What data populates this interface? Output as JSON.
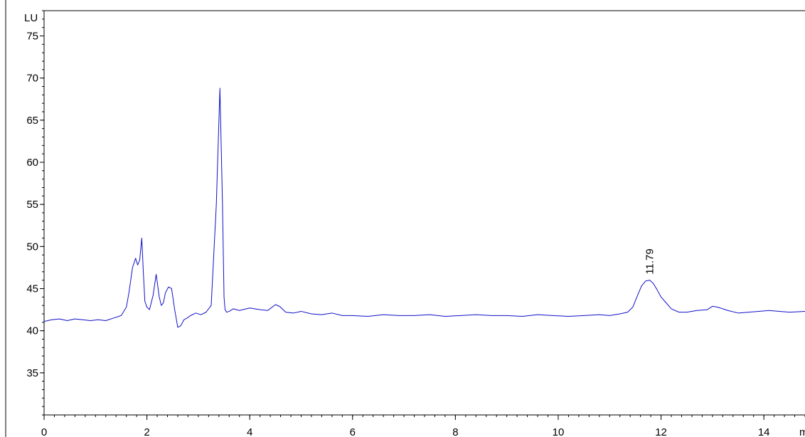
{
  "chart_data": {
    "type": "line",
    "ylabel": "LU",
    "xlabel": "m",
    "xlim": [
      0,
      14.8
    ],
    "ylim": [
      30,
      78
    ],
    "x_ticks": [
      0,
      2,
      4,
      6,
      8,
      10,
      12,
      14
    ],
    "x_tick_labels": [
      "0",
      "2",
      "4",
      "6",
      "8",
      "10",
      "12",
      "14"
    ],
    "y_ticks": [
      35,
      40,
      45,
      50,
      55,
      60,
      65,
      70,
      75
    ],
    "y_tick_labels": [
      "35",
      "40",
      "45",
      "50",
      "55",
      "60",
      "65",
      "70",
      "75"
    ],
    "grid": false,
    "line_color": "#1010c8",
    "series": [
      {
        "x": [
          0.0,
          0.15,
          0.3,
          0.45,
          0.6,
          0.75,
          0.9,
          1.05,
          1.2,
          1.35,
          1.5,
          1.6,
          1.65,
          1.72,
          1.78,
          1.82,
          1.86,
          1.9,
          1.93,
          1.96,
          2.0,
          2.05,
          2.12,
          2.18,
          2.24,
          2.28,
          2.32,
          2.36,
          2.42,
          2.48,
          2.54,
          2.6,
          2.66,
          2.72,
          2.78,
          2.85,
          2.95,
          3.05,
          3.15,
          3.25,
          3.35,
          3.42,
          3.47,
          3.5,
          3.52,
          3.55,
          3.6,
          3.68,
          3.8,
          4.0,
          4.2,
          4.35,
          4.5,
          4.58,
          4.7,
          4.85,
          5.0,
          5.2,
          5.4,
          5.6,
          5.8,
          6.0,
          6.3,
          6.6,
          6.9,
          7.2,
          7.5,
          7.8,
          8.1,
          8.4,
          8.7,
          9.0,
          9.3,
          9.6,
          9.9,
          10.2,
          10.5,
          10.8,
          11.0,
          11.2,
          11.35,
          11.45,
          11.55,
          11.62,
          11.7,
          11.78,
          11.85,
          11.92,
          12.0,
          12.1,
          12.2,
          12.35,
          12.5,
          12.7,
          12.9,
          13.0,
          13.1,
          13.3,
          13.5,
          13.7,
          13.9,
          14.1,
          14.3,
          14.5,
          14.8
        ],
        "y": [
          41.1,
          41.3,
          41.4,
          41.2,
          41.4,
          41.3,
          41.2,
          41.3,
          41.2,
          41.5,
          41.8,
          42.8,
          44.5,
          47.5,
          48.6,
          47.8,
          48.4,
          51.0,
          47.0,
          43.5,
          42.8,
          42.5,
          44.2,
          46.7,
          44.0,
          43.0,
          43.3,
          44.5,
          45.2,
          45.0,
          42.5,
          40.4,
          40.6,
          41.3,
          41.5,
          41.8,
          42.1,
          41.9,
          42.2,
          43.0,
          55.0,
          68.8,
          55.0,
          44.0,
          42.5,
          42.2,
          42.3,
          42.6,
          42.4,
          42.7,
          42.5,
          42.4,
          43.1,
          42.9,
          42.2,
          42.1,
          42.3,
          42.0,
          41.9,
          42.1,
          41.8,
          41.8,
          41.7,
          41.9,
          41.8,
          41.8,
          41.9,
          41.7,
          41.8,
          41.9,
          41.8,
          41.8,
          41.7,
          41.9,
          41.8,
          41.7,
          41.8,
          41.9,
          41.8,
          42.0,
          42.2,
          42.8,
          44.3,
          45.3,
          45.9,
          46.0,
          45.6,
          44.9,
          44.0,
          43.3,
          42.6,
          42.2,
          42.2,
          42.4,
          42.5,
          42.9,
          42.8,
          42.4,
          42.1,
          42.2,
          42.3,
          42.4,
          42.3,
          42.2,
          42.3
        ]
      }
    ],
    "annotations": [
      {
        "x": 11.79,
        "y": 46.0,
        "text": "11.79"
      }
    ]
  }
}
